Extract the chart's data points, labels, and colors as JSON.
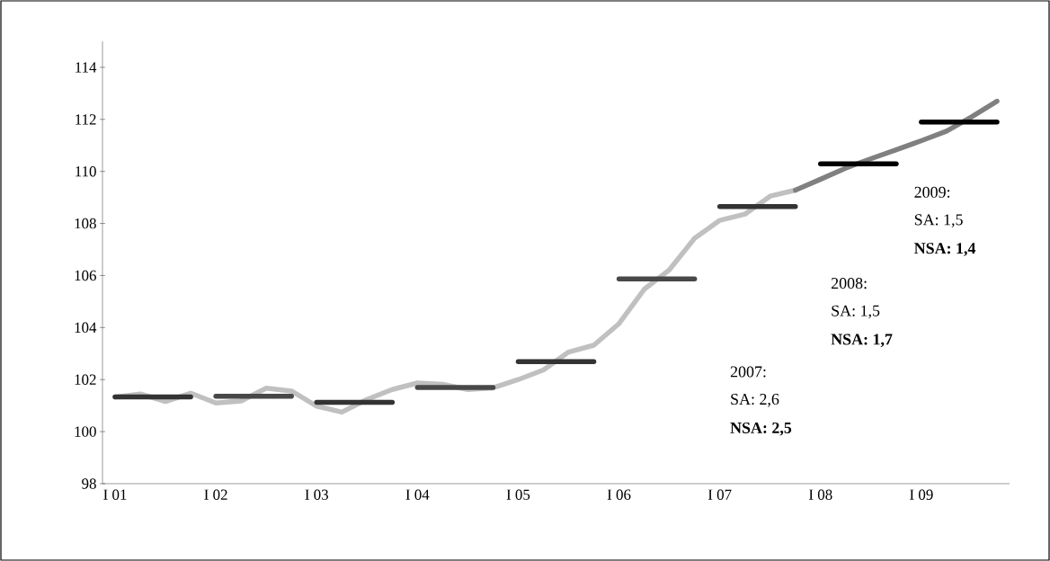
{
  "chart_data": {
    "type": "line",
    "categories": [
      "I 01",
      null,
      null,
      null,
      "I 02",
      null,
      null,
      null,
      "I 03",
      null,
      null,
      null,
      "I 04",
      null,
      null,
      null,
      "I 05",
      null,
      null,
      null,
      "I 06",
      null,
      null,
      null,
      "I 07",
      null,
      null,
      null,
      "I 08",
      null,
      null,
      null,
      "I 09",
      null,
      null,
      null
    ],
    "series": [
      {
        "color": "#c0c0c0",
        "values": [
          101.33,
          101.45,
          101.16,
          101.48,
          101.1,
          101.18,
          101.67,
          101.56,
          100.98,
          100.75,
          101.24,
          101.62,
          101.87,
          101.82,
          101.62,
          101.68,
          102.0,
          102.37,
          103.06,
          103.32,
          104.15,
          105.47,
          106.22,
          107.43,
          108.12,
          108.36,
          109.05,
          109.28,
          null,
          null,
          null,
          null,
          null,
          null,
          null,
          null
        ]
      },
      {
        "color": "#808080",
        "values": [
          null,
          null,
          null,
          null,
          null,
          null,
          null,
          null,
          null,
          null,
          null,
          null,
          null,
          null,
          null,
          null,
          null,
          null,
          null,
          null,
          null,
          null,
          null,
          null,
          null,
          null,
          null,
          109.28,
          109.7,
          110.13,
          110.49,
          110.83,
          111.18,
          111.55,
          112.1,
          112.7
        ]
      },
      {
        "color": "#333333",
        "values": [
          101.33,
          101.33,
          101.33,
          101.33,
          null,
          null,
          null,
          null,
          101.13,
          101.13,
          101.13,
          101.13,
          null,
          null,
          null,
          null,
          102.69,
          102.69,
          102.69,
          102.69,
          null,
          null,
          null,
          null,
          108.65,
          108.65,
          108.65,
          108.65,
          null,
          null,
          null,
          null,
          null,
          null,
          null,
          null
        ]
      },
      {
        "color": "#484848",
        "values": [
          null,
          null,
          null,
          null,
          101.36,
          101.36,
          101.36,
          101.36,
          null,
          null,
          null,
          null,
          101.7,
          101.7,
          101.7,
          101.7,
          null,
          null,
          null,
          null,
          105.87,
          105.87,
          105.87,
          105.87,
          null,
          null,
          null,
          null,
          null,
          null,
          null,
          null,
          null,
          null,
          null,
          null
        ]
      },
      {
        "color": "#000000",
        "values": [
          null,
          null,
          null,
          null,
          null,
          null,
          null,
          null,
          null,
          null,
          null,
          null,
          null,
          null,
          null,
          null,
          null,
          null,
          null,
          null,
          null,
          null,
          null,
          null,
          null,
          null,
          null,
          null,
          110.29,
          110.29,
          110.29,
          110.29,
          null,
          null,
          null,
          null
        ]
      },
      {
        "color": "#000000",
        "values": [
          null,
          null,
          null,
          null,
          null,
          null,
          null,
          null,
          null,
          null,
          null,
          null,
          null,
          null,
          null,
          null,
          null,
          null,
          null,
          null,
          null,
          null,
          null,
          null,
          null,
          null,
          null,
          null,
          null,
          null,
          null,
          null,
          111.9,
          111.9,
          111.9,
          111.9
        ]
      }
    ],
    "ylim": [
      98,
      115
    ],
    "yticks": [
      98,
      100,
      102,
      104,
      106,
      108,
      110,
      112,
      114
    ],
    "annotations": [
      "2007:",
      "SA: 2,6",
      "**NSA: 2,5**",
      "2008:",
      "SA:  1,5",
      "**NSA: 1,7**",
      "2009:",
      "SA:  1,5",
      "**NSA: 1,4**"
    ],
    "grid": false,
    "marker": "none",
    "line_style": "solid"
  }
}
